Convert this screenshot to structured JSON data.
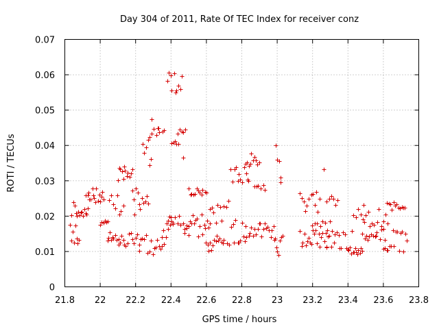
{
  "chart_data": {
    "type": "scatter",
    "title": "Day 304 of 2011, Rate Of TEC Index for receiver conz",
    "xlabel": "GPS time / hours",
    "ylabel": "ROTI / TECUs",
    "xlim": [
      21.8,
      23.8
    ],
    "ylim": [
      0,
      0.07
    ],
    "x_ticks": [
      "21.8",
      "22",
      "22.2",
      "22.4",
      "22.6",
      "22.8",
      "23",
      "23.2",
      "23.4",
      "23.6",
      "23.8"
    ],
    "y_ticks": [
      "0",
      "0.01",
      "0.02",
      "0.03",
      "0.04",
      "0.05",
      "0.06",
      "0.07"
    ],
    "grid": true,
    "marker": "+",
    "color": "#d40000",
    "segments": [
      {
        "x0": 21.83,
        "x1": 21.88,
        "lo": 0.012,
        "hi": 0.018,
        "n": 8
      },
      {
        "x0": 21.84,
        "x1": 21.93,
        "lo": 0.02,
        "hi": 0.024,
        "n": 14
      },
      {
        "x0": 21.92,
        "x1": 22.02,
        "lo": 0.024,
        "hi": 0.028,
        "n": 16
      },
      {
        "x0": 22.0,
        "x1": 22.04,
        "lo": 0.017,
        "hi": 0.02,
        "n": 6
      },
      {
        "x0": 22.04,
        "x1": 22.1,
        "lo": 0.012,
        "hi": 0.016,
        "n": 9
      },
      {
        "x0": 22.05,
        "x1": 22.13,
        "lo": 0.02,
        "hi": 0.026,
        "n": 8
      },
      {
        "x0": 22.1,
        "x1": 22.18,
        "lo": 0.03,
        "hi": 0.034,
        "n": 12
      },
      {
        "x0": 22.1,
        "x1": 22.22,
        "lo": 0.011,
        "hi": 0.016,
        "n": 14
      },
      {
        "x0": 22.18,
        "x1": 22.27,
        "lo": 0.02,
        "hi": 0.028,
        "n": 12
      },
      {
        "x0": 22.24,
        "x1": 22.29,
        "lo": 0.034,
        "hi": 0.042,
        "n": 6
      },
      {
        "x0": 22.28,
        "x1": 22.36,
        "lo": 0.042,
        "hi": 0.045,
        "n": 8
      },
      {
        "x0": 22.22,
        "x1": 22.36,
        "lo": 0.009,
        "hi": 0.015,
        "n": 16
      },
      {
        "x0": 22.35,
        "x1": 22.41,
        "lo": 0.013,
        "hi": 0.02,
        "n": 8
      },
      {
        "x0": 22.38,
        "x1": 22.46,
        "lo": 0.055,
        "hi": 0.061,
        "n": 10
      },
      {
        "x0": 22.4,
        "x1": 22.44,
        "lo": 0.04,
        "hi": 0.042,
        "n": 5
      },
      {
        "x0": 22.44,
        "x1": 22.48,
        "lo": 0.043,
        "hi": 0.045,
        "n": 5
      },
      {
        "x0": 22.38,
        "x1": 22.5,
        "lo": 0.016,
        "hi": 0.02,
        "n": 12
      },
      {
        "x0": 22.5,
        "x1": 22.6,
        "lo": 0.026,
        "hi": 0.028,
        "n": 12
      },
      {
        "x0": 22.48,
        "x1": 22.62,
        "lo": 0.014,
        "hi": 0.021,
        "n": 18
      },
      {
        "x0": 22.6,
        "x1": 22.7,
        "lo": 0.01,
        "hi": 0.016,
        "n": 14
      },
      {
        "x0": 22.62,
        "x1": 22.72,
        "lo": 0.018,
        "hi": 0.025,
        "n": 10
      },
      {
        "x0": 22.72,
        "x1": 22.82,
        "lo": 0.012,
        "hi": 0.019,
        "n": 12
      },
      {
        "x0": 22.74,
        "x1": 22.84,
        "lo": 0.029,
        "hi": 0.034,
        "n": 12
      },
      {
        "x0": 22.82,
        "x1": 22.9,
        "lo": 0.034,
        "hi": 0.038,
        "n": 10
      },
      {
        "x0": 22.82,
        "x1": 22.98,
        "lo": 0.014,
        "hi": 0.018,
        "n": 20
      },
      {
        "x0": 22.87,
        "x1": 22.93,
        "lo": 0.027,
        "hi": 0.029,
        "n": 6
      },
      {
        "x0": 22.98,
        "x1": 23.03,
        "lo": 0.009,
        "hi": 0.015,
        "n": 8
      },
      {
        "x0": 23.13,
        "x1": 23.28,
        "lo": 0.011,
        "hi": 0.016,
        "n": 20
      },
      {
        "x0": 23.13,
        "x1": 23.24,
        "lo": 0.021,
        "hi": 0.027,
        "n": 12
      },
      {
        "x0": 23.2,
        "x1": 23.3,
        "lo": 0.016,
        "hi": 0.019,
        "n": 8
      },
      {
        "x0": 23.28,
        "x1": 23.34,
        "lo": 0.023,
        "hi": 0.026,
        "n": 6
      },
      {
        "x0": 23.28,
        "x1": 23.42,
        "lo": 0.01,
        "hi": 0.016,
        "n": 18
      },
      {
        "x0": 23.42,
        "x1": 23.48,
        "lo": 0.009,
        "hi": 0.011,
        "n": 10
      },
      {
        "x0": 23.43,
        "x1": 23.5,
        "lo": 0.019,
        "hi": 0.024,
        "n": 6
      },
      {
        "x0": 23.48,
        "x1": 23.62,
        "lo": 0.013,
        "hi": 0.023,
        "n": 26
      },
      {
        "x0": 23.6,
        "x1": 23.73,
        "lo": 0.01,
        "hi": 0.016,
        "n": 16
      },
      {
        "x0": 23.62,
        "x1": 23.72,
        "lo": 0.021,
        "hi": 0.024,
        "n": 12
      }
    ],
    "outliers": [
      {
        "x": 22.99,
        "y": 0.04
      },
      {
        "x": 23.0,
        "y": 0.036
      },
      {
        "x": 23.01,
        "y": 0.0355
      },
      {
        "x": 23.02,
        "y": 0.031
      },
      {
        "x": 23.02,
        "y": 0.0295
      },
      {
        "x": 23.265,
        "y": 0.0333
      },
      {
        "x": 22.47,
        "y": 0.0365
      },
      {
        "x": 22.29,
        "y": 0.0475
      },
      {
        "x": 22.33,
        "y": 0.0448
      }
    ]
  }
}
